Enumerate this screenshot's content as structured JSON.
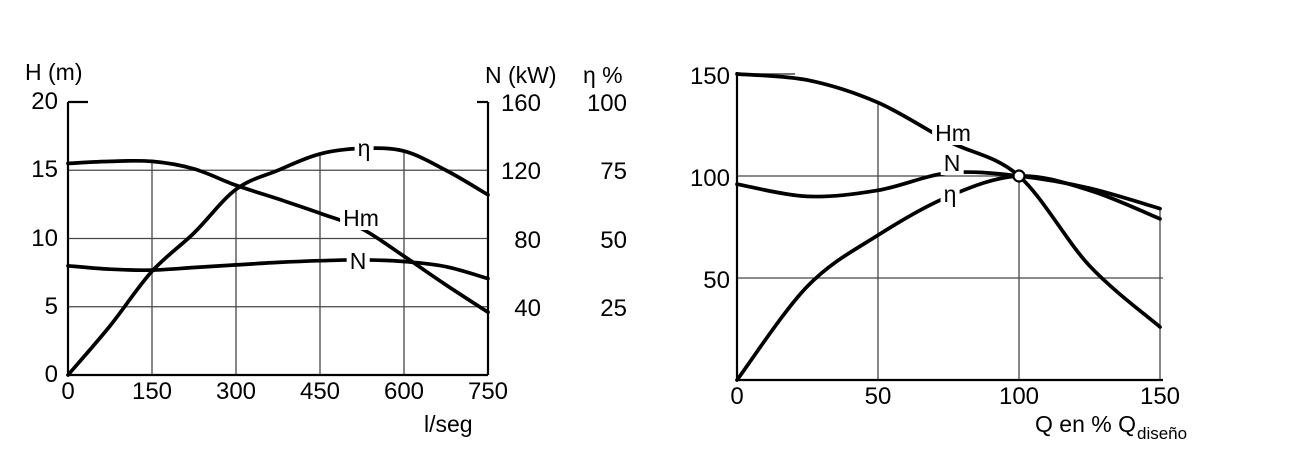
{
  "figure": {
    "background": "#ffffff",
    "ink": "#000000",
    "grid": "#474747"
  },
  "chart_data": [
    {
      "type": "line",
      "id": "pump-curves-absolute",
      "title": "",
      "xlabel": "l/seg",
      "x_range": [
        0,
        750
      ],
      "x_ticks": [
        0,
        150,
        300,
        450,
        600,
        750
      ],
      "grid": true,
      "legend_position": "inline-curve-labels",
      "axes": {
        "left": {
          "label": "H (m)",
          "ticks": [
            20,
            15,
            10,
            5,
            0
          ],
          "range": [
            0,
            20
          ]
        },
        "right_inner": {
          "label": "N (kW)",
          "ticks": [
            160,
            120,
            80,
            40
          ],
          "range": [
            0,
            160
          ]
        },
        "right_outer": {
          "label": "η %",
          "ticks": [
            100,
            75,
            50,
            25
          ],
          "range": [
            0,
            100
          ]
        }
      },
      "x": [
        0,
        75,
        150,
        225,
        300,
        375,
        450,
        525,
        600,
        675,
        750
      ],
      "series": [
        {
          "name": "Hm",
          "label": "Hm",
          "axis": "left",
          "unit": "m",
          "values": [
            15.5,
            15.65,
            15.65,
            15.1,
            13.9,
            12.9,
            11.85,
            10.7,
            8.7,
            6.6,
            4.6
          ]
        },
        {
          "name": "N",
          "label": "N",
          "axis": "right_inner",
          "unit": "kW",
          "values": [
            64,
            62,
            61.5,
            63,
            64.5,
            66,
            67,
            67.5,
            66.5,
            63.5,
            56.5
          ]
        },
        {
          "name": "eta",
          "label": "η",
          "axis": "right_outer",
          "unit": "%",
          "values": [
            0,
            18,
            38,
            52,
            68,
            75,
            81,
            83,
            82,
            75,
            66
          ]
        }
      ]
    },
    {
      "type": "line",
      "id": "pump-curves-percent-of-design",
      "title": "",
      "xlabel": "Q en % Q",
      "xlabel_sub": "diseño",
      "x_range": [
        0,
        150
      ],
      "x_ticks": [
        0,
        50,
        100,
        150
      ],
      "y_range": [
        0,
        150
      ],
      "y_ticks": [
        150,
        100,
        50
      ],
      "grid": true,
      "legend_position": "inline-curve-labels",
      "x": [
        0,
        25,
        50,
        75,
        100,
        125,
        150
      ],
      "series": [
        {
          "name": "Hm",
          "label": "Hm",
          "unit": "%",
          "values": [
            150,
            147,
            136,
            117,
            100,
            56,
            26
          ]
        },
        {
          "name": "N",
          "label": "N",
          "unit": "%",
          "values": [
            96,
            90,
            93,
            101.5,
            100,
            94,
            84
          ]
        },
        {
          "name": "eta",
          "label": "η",
          "unit": "%",
          "values": [
            0,
            46,
            71,
            90,
            100,
            93,
            79
          ]
        }
      ],
      "design_point": {
        "x": 100,
        "y": 100,
        "marker": "open-circle"
      }
    }
  ]
}
